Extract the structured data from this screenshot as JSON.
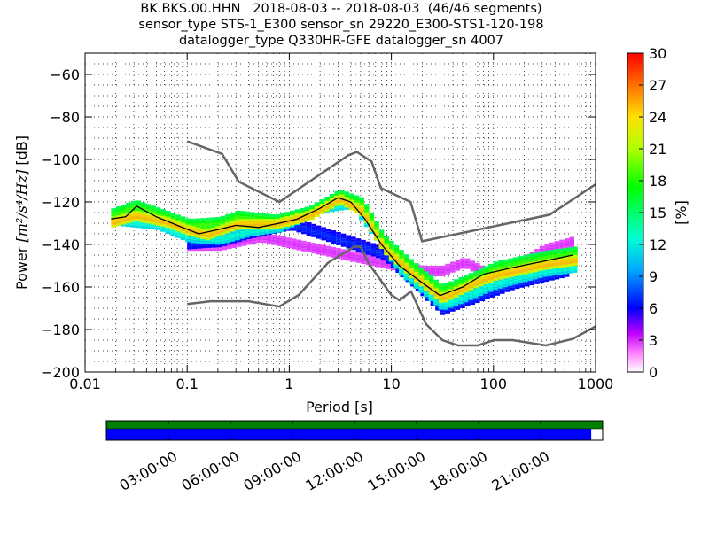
{
  "chart_data": {
    "type": "heatmap",
    "title_lines": [
      "BK.BKS.00.HHN   2018-08-03 -- 2018-08-03  (46/46 segments)",
      "sensor_type STS-1_E300 sensor_sn 29220_E300-STS1-120-198",
      "datalogger_type Q330HR-GFE datalogger_sn 4007"
    ],
    "xlabel": "Period [s]",
    "ylabel_prefix": "Power ",
    "ylabel_units": "[m²/s⁴/Hz]",
    "ylabel_suffix": " [dB]",
    "x_scale": "log",
    "xlim": [
      0.01,
      1000
    ],
    "ylim": [
      -200,
      -50
    ],
    "x_ticks": [
      0.01,
      0.1,
      1,
      10,
      100,
      1000
    ],
    "x_tick_labels": [
      "0.01",
      "0.1",
      "1",
      "10",
      "100",
      "1000"
    ],
    "y_ticks": [
      -200,
      -180,
      -160,
      -140,
      -120,
      -100,
      -80,
      -60
    ],
    "y_tick_labels": [
      "−200",
      "−180",
      "−160",
      "−140",
      "−120",
      "−100",
      "−80",
      "−60"
    ],
    "grid": "dotted",
    "colorbar": {
      "label": "[%]",
      "range": [
        0,
        30
      ],
      "ticks": [
        0,
        3,
        6,
        9,
        12,
        15,
        18,
        21,
        24,
        27,
        30
      ],
      "tick_labels": [
        "0",
        "3",
        "6",
        "9",
        "12",
        "15",
        "18",
        "21",
        "24",
        "27",
        "30"
      ]
    },
    "noise_models": [
      {
        "name": "high",
        "color": "#666666",
        "points": [
          [
            0.1,
            -91.5
          ],
          [
            0.22,
            -97.4
          ],
          [
            0.32,
            -110.5
          ],
          [
            0.8,
            -120
          ],
          [
            3.8,
            -98
          ],
          [
            4.6,
            -96.5
          ],
          [
            6.4,
            -101
          ],
          [
            7.9,
            -113.5
          ],
          [
            15.4,
            -120
          ],
          [
            20,
            -138.5
          ],
          [
            354.8,
            -126
          ],
          [
            10000,
            -80
          ]
        ]
      },
      {
        "name": "low",
        "color": "#666666",
        "points": [
          [
            0.1,
            -168
          ],
          [
            0.17,
            -166.7
          ],
          [
            0.4,
            -166.7
          ],
          [
            0.8,
            -169.2
          ],
          [
            1.24,
            -163.7
          ],
          [
            2.4,
            -148.6
          ],
          [
            4.3,
            -141.1
          ],
          [
            5,
            -141
          ],
          [
            6,
            -149
          ],
          [
            10,
            -163.8
          ],
          [
            12,
            -166.2
          ],
          [
            15.6,
            -162.1
          ],
          [
            21.9,
            -177.5
          ],
          [
            31.6,
            -185
          ],
          [
            45,
            -187.5
          ],
          [
            70,
            -187.5
          ],
          [
            101,
            -185
          ],
          [
            154,
            -185
          ],
          [
            328,
            -187.5
          ],
          [
            600,
            -184.4
          ],
          [
            10000,
            -151.9
          ]
        ]
      }
    ],
    "mode_curve": {
      "color": "#000000",
      "points": [
        [
          0.018,
          -128
        ],
        [
          0.025,
          -127
        ],
        [
          0.032,
          -122
        ],
        [
          0.05,
          -127
        ],
        [
          0.08,
          -131
        ],
        [
          0.13,
          -135
        ],
        [
          0.2,
          -133
        ],
        [
          0.3,
          -131
        ],
        [
          0.5,
          -132
        ],
        [
          0.8,
          -130
        ],
        [
          1.2,
          -128
        ],
        [
          2,
          -123
        ],
        [
          3,
          -118
        ],
        [
          4,
          -120
        ],
        [
          5.5,
          -128
        ],
        [
          8,
          -140
        ],
        [
          12,
          -150
        ],
        [
          20,
          -158
        ],
        [
          30,
          -164
        ],
        [
          50,
          -160
        ],
        [
          80,
          -154
        ],
        [
          150,
          -151
        ],
        [
          300,
          -148
        ],
        [
          600,
          -145
        ]
      ]
    },
    "density_bands": [
      {
        "level": 26,
        "spread_db": 2,
        "points": [
          [
            0.018,
            -129
          ],
          [
            0.03,
            -126
          ],
          [
            0.06,
            -129
          ],
          [
            0.1,
            -133
          ],
          [
            0.15,
            -135
          ],
          [
            0.3,
            -130
          ],
          [
            0.7,
            -130
          ],
          [
            1.5,
            -126
          ],
          [
            3,
            -118
          ],
          [
            5,
            -124
          ],
          [
            8,
            -141
          ],
          [
            15,
            -153
          ],
          [
            30,
            -165
          ],
          [
            60,
            -158
          ],
          [
            100,
            -154
          ],
          [
            300,
            -149
          ],
          [
            600,
            -147
          ]
        ]
      },
      {
        "level": 19,
        "spread_db": 3,
        "points": [
          [
            0.018,
            -126
          ],
          [
            0.03,
            -122
          ],
          [
            0.06,
            -127
          ],
          [
            0.1,
            -131
          ],
          [
            0.2,
            -130
          ],
          [
            0.3,
            -127
          ],
          [
            0.7,
            -129
          ],
          [
            1.5,
            -125
          ],
          [
            3,
            -117
          ],
          [
            5,
            -121
          ],
          [
            8,
            -138
          ],
          [
            15,
            -150
          ],
          [
            30,
            -162
          ],
          [
            60,
            -156
          ],
          [
            100,
            -151
          ],
          [
            300,
            -146
          ],
          [
            600,
            -144
          ]
        ]
      },
      {
        "level": 13,
        "spread_db": 3,
        "points": [
          [
            0.02,
            -128
          ],
          [
            0.05,
            -130
          ],
          [
            0.1,
            -136
          ],
          [
            0.2,
            -137
          ],
          [
            0.4,
            -133
          ],
          [
            0.8,
            -131
          ],
          [
            2,
            -122
          ],
          [
            4,
            -120
          ],
          [
            7,
            -136
          ],
          [
            12,
            -152
          ],
          [
            30,
            -168
          ],
          [
            50,
            -164
          ],
          [
            100,
            -158
          ],
          [
            300,
            -152
          ],
          [
            600,
            -150
          ]
        ]
      },
      {
        "level": 7,
        "spread_db": 3,
        "points": [
          [
            0.1,
            -139
          ],
          [
            0.2,
            -138
          ],
          [
            0.4,
            -134
          ],
          [
            1,
            -130
          ],
          [
            8,
            -144
          ],
          [
            15,
            -156
          ],
          [
            30,
            -170
          ],
          [
            60,
            -165
          ],
          [
            150,
            -158
          ],
          [
            500,
            -152
          ]
        ]
      },
      {
        "level": 3,
        "spread_db": 2,
        "points": [
          [
            0.1,
            -140
          ],
          [
            0.2,
            -140
          ],
          [
            0.5,
            -136
          ],
          [
            12,
            -150
          ],
          [
            20,
            -152
          ],
          [
            30,
            -152
          ],
          [
            50,
            -148
          ],
          [
            100,
            -155
          ],
          [
            300,
            -142
          ],
          [
            600,
            -138
          ]
        ]
      }
    ]
  },
  "timeline": {
    "ticks": [
      "03:00:00",
      "06:00:00",
      "09:00:00",
      "12:00:00",
      "15:00:00",
      "18:00:00",
      "21:00:00"
    ],
    "tick_hours": [
      3,
      6,
      9,
      12,
      15,
      18,
      21
    ],
    "span_hours": 24,
    "data_coverage": 1.0,
    "psd_coverage": 0.977,
    "data_color": "#008000",
    "psd_color": "#0000ff"
  }
}
